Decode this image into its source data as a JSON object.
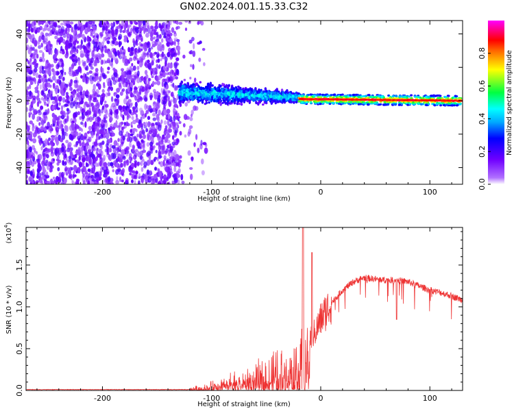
{
  "figure": {
    "title": "GN02.2024.001.15.33.C32"
  },
  "chart_data": [
    {
      "type": "heatmap",
      "title": "GN02.2024.001.15.33.C32",
      "xlabel": "Height of straight line (km)",
      "ylabel": "Frequency (Hz)",
      "xlim": [
        -270,
        130
      ],
      "ylim": [
        -50,
        48
      ],
      "x_ticks": [
        -200,
        -100,
        0,
        100
      ],
      "y_ticks": [
        -40,
        -20,
        0,
        20,
        40
      ],
      "colorbar": {
        "label": "Normalized spectral amplitude",
        "range": [
          0.0,
          1.0
        ],
        "ticks": [
          "0.0",
          "0.2",
          "0.4",
          "0.6",
          "0.8"
        ],
        "colormap": [
          "#ffffff",
          "#8000ff",
          "#0000ff",
          "#00ffff",
          "#00ff00",
          "#ffff00",
          "#ff0000",
          "#ff00ff"
        ]
      },
      "regions": [
        {
          "x": [
            -270,
            -130
          ],
          "description": "noise",
          "amplitude": 0.1
        },
        {
          "x": [
            -130,
            -20
          ],
          "center_freq_hz": [
            5,
            2
          ],
          "amplitude": 0.45
        },
        {
          "x": [
            -20,
            130
          ],
          "center_freq_hz": [
            1,
            0
          ],
          "amplitude": 0.9
        }
      ]
    },
    {
      "type": "line",
      "xlabel": "Height of straight line (km)",
      "ylabel": "SNR (10 * v/v)",
      "y_multiplier": "(x10^4)",
      "xlim": [
        -270,
        130
      ],
      "ylim": [
        0.0,
        1.95
      ],
      "x_ticks": [
        -200,
        -100,
        0,
        100
      ],
      "y_ticks": [
        "0.0",
        "0.5",
        "1.0",
        "1.5"
      ],
      "series": [
        {
          "color": "#ee3333",
          "x": [
            -270,
            -200,
            -150,
            -130,
            -120,
            -110,
            -100,
            -90,
            -80,
            -70,
            -60,
            -50,
            -40,
            -30,
            -25,
            -20,
            -15,
            -10,
            -5,
            0,
            10,
            20,
            30,
            40,
            50,
            60,
            70,
            80,
            90,
            100,
            110,
            120,
            130
          ],
          "y": [
            0.01,
            0.01,
            0.01,
            0.02,
            0.03,
            0.05,
            0.08,
            0.12,
            0.17,
            0.2,
            0.24,
            0.3,
            0.36,
            0.45,
            0.5,
            0.55,
            0.6,
            0.62,
            0.7,
            0.85,
            1.05,
            1.2,
            1.3,
            1.35,
            1.33,
            1.32,
            1.32,
            1.3,
            1.25,
            1.2,
            1.17,
            1.13,
            1.08
          ]
        }
      ]
    }
  ]
}
